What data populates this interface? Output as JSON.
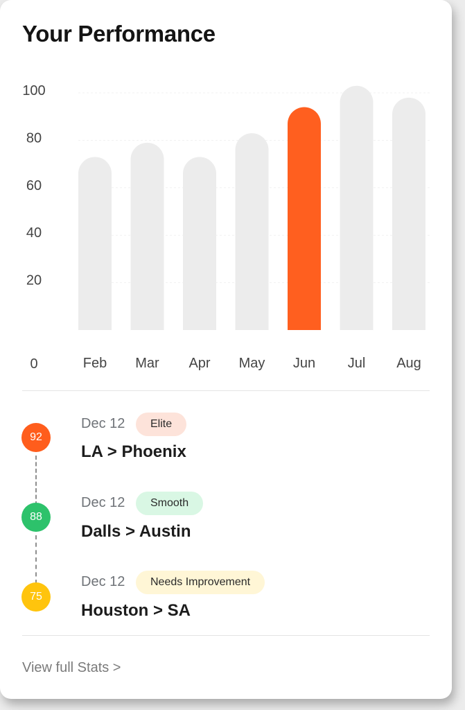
{
  "card": {
    "title": "Your Performance"
  },
  "chart_data": {
    "type": "bar",
    "title": "Your Performance",
    "categories": [
      "Feb",
      "Mar",
      "Apr",
      "May",
      "Jun",
      "Jul",
      "Aug"
    ],
    "values": [
      73,
      79,
      73,
      83,
      94,
      103,
      98
    ],
    "highlight_index": 4,
    "yticks": [
      0,
      20,
      40,
      60,
      80,
      100
    ],
    "ylim": [
      0,
      105
    ],
    "grid": true,
    "colors": {
      "bar": "#ececec",
      "highlight": "#ff5f1f",
      "grid": "#f1f1f1",
      "tick": "#444444"
    }
  },
  "trips": [
    {
      "score": "92",
      "score_color": "#ff5d1c",
      "date": "Dec 12",
      "badge": "Elite",
      "badge_bg": "#fde3da",
      "route": "LA > Phoenix"
    },
    {
      "score": "88",
      "score_color": "#2dc26b",
      "date": "Dec 12",
      "badge": "Smooth",
      "badge_bg": "#d9f7e4",
      "route": "Dalls > Austin"
    },
    {
      "score": "75",
      "score_color": "#ffc40d",
      "date": "Dec 12",
      "badge": "Needs Improvement",
      "badge_bg": "#fff6d6",
      "route": "Houston > SA"
    }
  ],
  "footer": {
    "link": "View full Stats >"
  }
}
